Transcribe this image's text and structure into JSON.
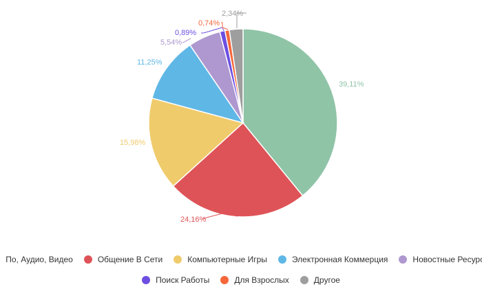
{
  "chart_data": {
    "type": "pie",
    "title": "",
    "labels": [
      "По, Аудио, Видео",
      "Общение В Сети",
      "Компьютерные Игры",
      "Электронная Коммерция",
      "Новостные Ресурсы",
      "Поиск Работы",
      "Для Взрослых",
      "Другое"
    ],
    "values": [
      39.11,
      24.16,
      15.98,
      11.25,
      5.54,
      0.89,
      0.74,
      2.34
    ],
    "value_labels": [
      "39,11%",
      "24,16%",
      "15,98%",
      "11,25%",
      "5,54%",
      "0,89%",
      "0,74%",
      "2,34%"
    ],
    "colors": [
      "#8fc4a7",
      "#de5357",
      "#f0cb6c",
      "#5fb7e6",
      "#ae98cf",
      "#6c4ee2",
      "#f5673a",
      "#9e9e9e"
    ],
    "legend_position": "bottom"
  }
}
